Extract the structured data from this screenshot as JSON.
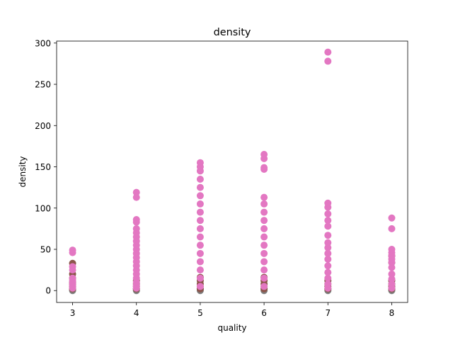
{
  "chart_data": {
    "type": "scatter",
    "title": "density",
    "xlabel": "quality",
    "ylabel": "density",
    "xlim": [
      2.75,
      8.25
    ],
    "ylim": [
      -14.4,
      302.4
    ],
    "xticks": [
      3,
      4,
      5,
      6,
      7,
      8
    ],
    "yticks": [
      0,
      50,
      100,
      150,
      200,
      250,
      300
    ],
    "grid": false,
    "series": [
      {
        "color": "#7f7f7f",
        "points": [
          [
            3,
            0
          ],
          [
            3,
            2
          ],
          [
            4,
            0
          ],
          [
            4,
            2
          ],
          [
            5,
            0
          ],
          [
            5,
            2
          ],
          [
            6,
            0
          ],
          [
            6,
            2
          ],
          [
            7,
            0
          ],
          [
            7,
            2
          ],
          [
            8,
            0
          ],
          [
            8,
            2
          ]
        ]
      },
      {
        "color": "#8c564b",
        "points": [
          [
            3,
            2
          ],
          [
            3,
            5
          ],
          [
            3,
            8
          ],
          [
            3,
            10
          ],
          [
            3,
            15
          ],
          [
            3,
            20
          ],
          [
            3,
            33
          ],
          [
            4,
            2
          ],
          [
            4,
            5
          ],
          [
            4,
            8
          ],
          [
            4,
            12
          ],
          [
            5,
            2
          ],
          [
            5,
            5
          ],
          [
            5,
            8
          ],
          [
            5,
            12
          ],
          [
            5,
            16
          ],
          [
            6,
            2
          ],
          [
            6,
            5
          ],
          [
            6,
            8
          ],
          [
            6,
            12
          ],
          [
            6,
            16
          ],
          [
            7,
            2
          ],
          [
            7,
            5
          ],
          [
            7,
            8
          ],
          [
            7,
            12
          ],
          [
            8,
            2
          ],
          [
            8,
            5
          ],
          [
            8,
            8
          ],
          [
            8,
            12
          ],
          [
            8,
            34
          ],
          [
            8,
            42
          ]
        ]
      },
      {
        "color": "#e377c2",
        "points": [
          [
            3,
            3
          ],
          [
            3,
            6
          ],
          [
            3,
            9
          ],
          [
            3,
            12
          ],
          [
            3,
            15
          ],
          [
            3,
            25
          ],
          [
            3,
            29
          ],
          [
            3,
            46
          ],
          [
            3,
            49
          ],
          [
            4,
            3
          ],
          [
            4,
            6
          ],
          [
            4,
            10
          ],
          [
            4,
            15
          ],
          [
            4,
            20
          ],
          [
            4,
            25
          ],
          [
            4,
            30
          ],
          [
            4,
            35
          ],
          [
            4,
            40
          ],
          [
            4,
            45
          ],
          [
            4,
            50
          ],
          [
            4,
            55
          ],
          [
            4,
            60
          ],
          [
            4,
            65
          ],
          [
            4,
            70
          ],
          [
            4,
            75
          ],
          [
            4,
            83
          ],
          [
            4,
            86
          ],
          [
            4,
            113
          ],
          [
            4,
            119
          ],
          [
            5,
            5
          ],
          [
            5,
            15
          ],
          [
            5,
            25
          ],
          [
            5,
            35
          ],
          [
            5,
            45
          ],
          [
            5,
            55
          ],
          [
            5,
            65
          ],
          [
            5,
            75
          ],
          [
            5,
            85
          ],
          [
            5,
            95
          ],
          [
            5,
            105
          ],
          [
            5,
            115
          ],
          [
            5,
            125
          ],
          [
            5,
            135
          ],
          [
            5,
            145
          ],
          [
            5,
            150
          ],
          [
            5,
            155
          ],
          [
            6,
            5
          ],
          [
            6,
            15
          ],
          [
            6,
            25
          ],
          [
            6,
            35
          ],
          [
            6,
            45
          ],
          [
            6,
            55
          ],
          [
            6,
            65
          ],
          [
            6,
            75
          ],
          [
            6,
            85
          ],
          [
            6,
            95
          ],
          [
            6,
            105
          ],
          [
            6,
            113
          ],
          [
            6,
            147
          ],
          [
            6,
            149
          ],
          [
            6,
            160
          ],
          [
            6,
            165
          ],
          [
            7,
            3
          ],
          [
            7,
            8
          ],
          [
            7,
            15
          ],
          [
            7,
            22
          ],
          [
            7,
            30
          ],
          [
            7,
            38
          ],
          [
            7,
            45
          ],
          [
            7,
            52
          ],
          [
            7,
            58
          ],
          [
            7,
            67
          ],
          [
            7,
            78
          ],
          [
            7,
            85
          ],
          [
            7,
            93
          ],
          [
            7,
            101
          ],
          [
            7,
            106
          ],
          [
            7,
            278
          ],
          [
            7,
            289
          ],
          [
            8,
            3
          ],
          [
            8,
            8
          ],
          [
            8,
            14
          ],
          [
            8,
            20
          ],
          [
            8,
            28
          ],
          [
            8,
            34
          ],
          [
            8,
            38
          ],
          [
            8,
            42
          ],
          [
            8,
            46
          ],
          [
            8,
            50
          ],
          [
            8,
            75
          ],
          [
            8,
            88
          ]
        ]
      }
    ]
  }
}
